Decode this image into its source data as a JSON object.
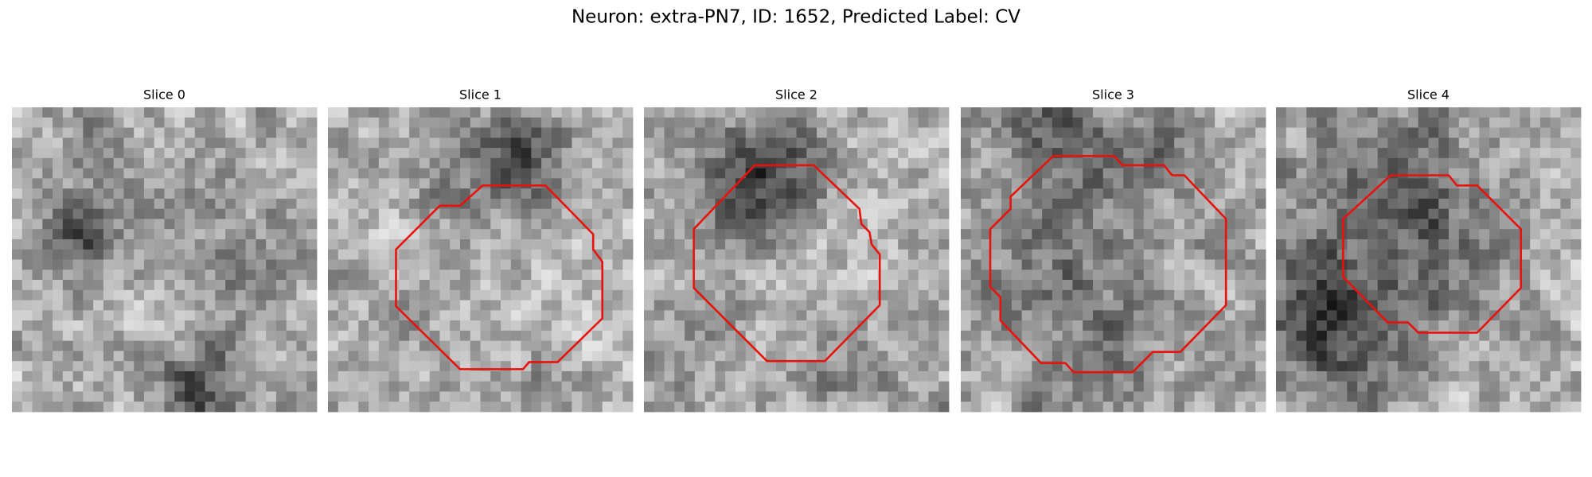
{
  "title": "Neuron: extra-PN7, ID: 1652, Predicted Label: CV",
  "panels": [
    {
      "title": "Slice 0"
    },
    {
      "title": "Slice 1"
    },
    {
      "title": "Slice 2"
    },
    {
      "title": "Slice 3"
    },
    {
      "title": "Slice 4"
    }
  ]
}
